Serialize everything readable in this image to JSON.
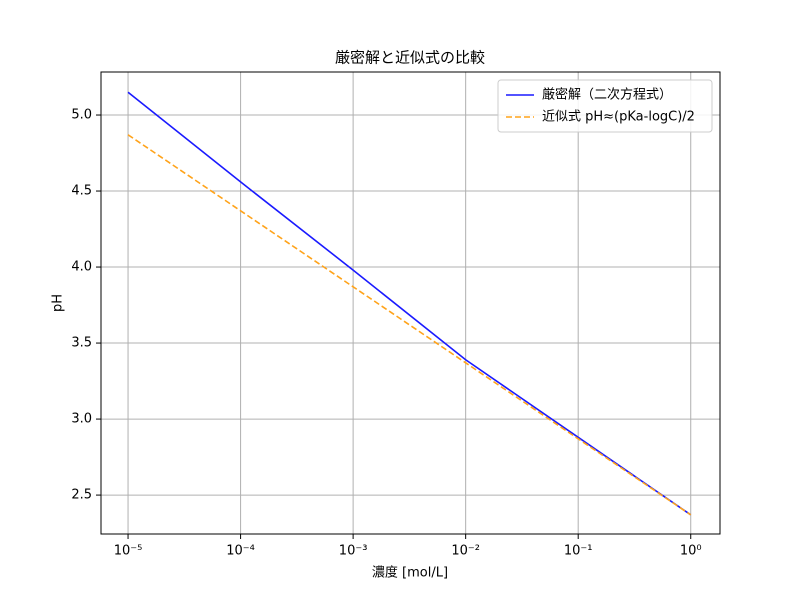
{
  "chart_data": {
    "type": "line",
    "title": "厳密解と近似式の比較",
    "xlabel": "濃度 [mol/L]",
    "ylabel": "pH",
    "x": [
      1e-05,
      0.0001,
      0.001,
      0.01,
      0.1,
      1
    ],
    "series": [
      {
        "name": "厳密解（二次方程式）",
        "color": "#1a1aff",
        "dash": "solid",
        "values": [
          5.15,
          4.56,
          3.98,
          3.39,
          2.88,
          2.37
        ]
      },
      {
        "name": "近似式 pH≈(pKa-logC)/2",
        "color": "#ffa31a",
        "dash": "dashed",
        "values": [
          4.87,
          4.37,
          3.87,
          3.37,
          2.87,
          2.37
        ]
      }
    ],
    "xscale": "log",
    "xlim": [
      5.75e-06,
      1.82
    ],
    "xticks": [
      {
        "value": 1e-05,
        "label": "10⁻⁵"
      },
      {
        "value": 0.0001,
        "label": "10⁻⁴"
      },
      {
        "value": 0.001,
        "label": "10⁻³"
      },
      {
        "value": 0.01,
        "label": "10⁻²"
      },
      {
        "value": 0.1,
        "label": "10⁻¹"
      },
      {
        "value": 1,
        "label": "10⁰"
      }
    ],
    "ylim": [
      2.244,
      5.283
    ],
    "yticks": [
      {
        "value": 2.5,
        "label": "2.5"
      },
      {
        "value": 3,
        "label": "3.0"
      },
      {
        "value": 3.5,
        "label": "3.5"
      },
      {
        "value": 4,
        "label": "4.0"
      },
      {
        "value": 4.5,
        "label": "4.5"
      },
      {
        "value": 5,
        "label": "5.0"
      }
    ],
    "grid": true,
    "legend": "upper right"
  }
}
